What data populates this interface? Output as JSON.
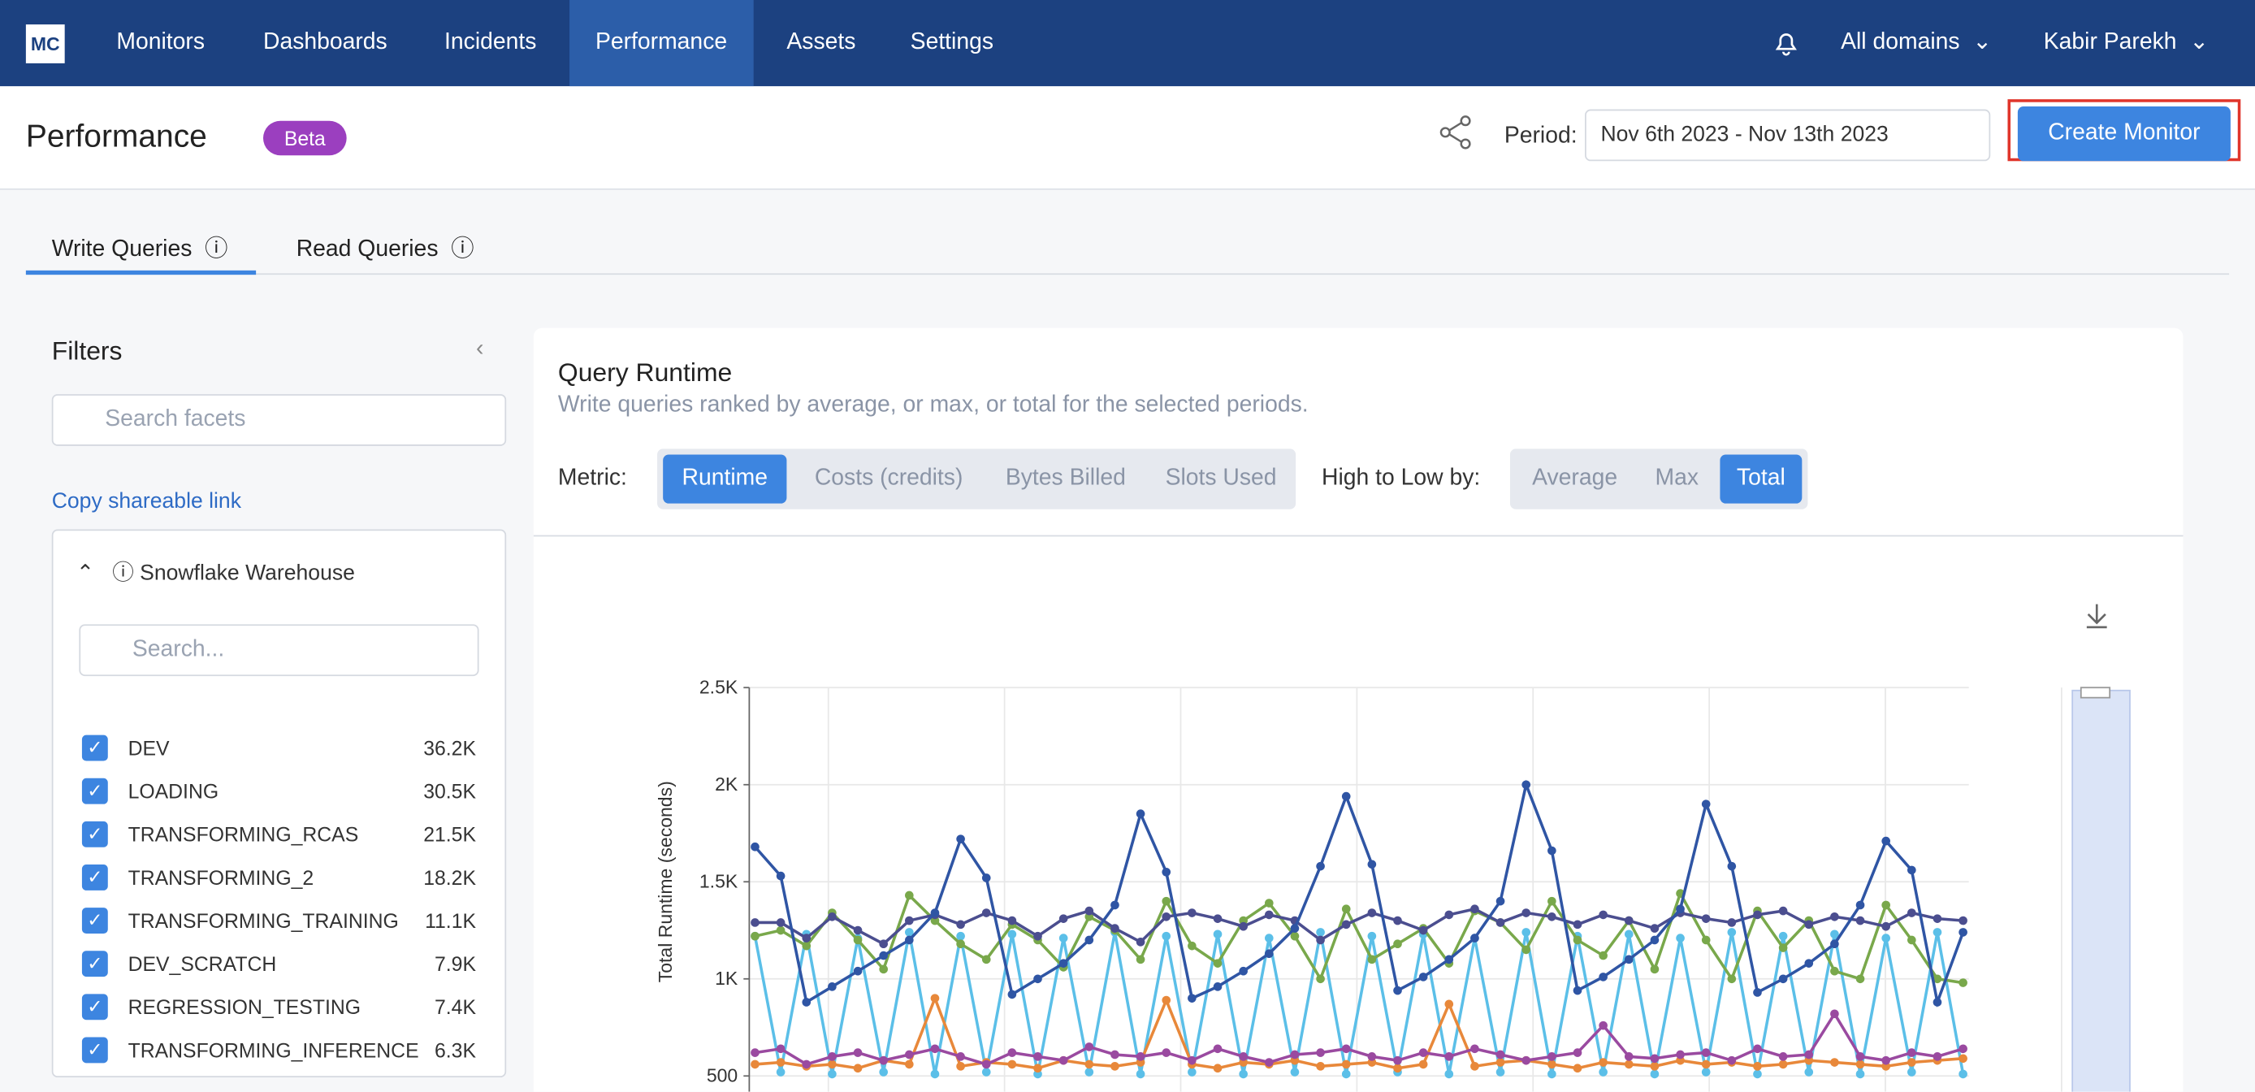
{
  "nav": {
    "logo": "MC",
    "items": [
      "Monitors",
      "Dashboards",
      "Incidents",
      "Performance",
      "Assets",
      "Settings"
    ],
    "domains": "All domains",
    "user": "Kabir Parekh"
  },
  "header": {
    "title": "Performance",
    "badge": "Beta",
    "period_label": "Period:",
    "period": "Nov 6th 2023 - Nov 13th 2023",
    "create_button": "Create Monitor"
  },
  "tabs": [
    "Write Queries",
    "Read Queries"
  ],
  "filters": {
    "title": "Filters",
    "search_placeholder": "Search facets",
    "copy_link": "Copy shareable link",
    "facet": "Snowflake Warehouse",
    "facet_search": "Search...",
    "items": [
      {
        "name": "DEV",
        "count": "36.2K"
      },
      {
        "name": "LOADING",
        "count": "30.5K"
      },
      {
        "name": "TRANSFORMING_RCAS",
        "count": "21.5K"
      },
      {
        "name": "TRANSFORMING_2",
        "count": "18.2K"
      },
      {
        "name": "TRANSFORMING_TRAINING",
        "count": "11.1K"
      },
      {
        "name": "DEV_SCRATCH",
        "count": "7.9K"
      },
      {
        "name": "REGRESSION_TESTING",
        "count": "7.4K"
      },
      {
        "name": "TRANSFORMING_INFERENCE",
        "count": "6.3K"
      }
    ]
  },
  "panel": {
    "title": "Query Runtime",
    "subtitle": "Write queries ranked by average, or max, or total for the selected periods.",
    "metric_label": "Metric:",
    "metrics": [
      "Runtime",
      "Costs (credits)",
      "Bytes Billed",
      "Slots Used"
    ],
    "sort_label": "High to Low by:",
    "sorts": [
      "Average",
      "Max",
      "Total"
    ]
  },
  "chart_data": {
    "type": "line",
    "y_label": "Total Runtime (seconds)",
    "ylim": [
      500,
      2500
    ],
    "yticks": [
      500,
      {
        "value": 1000,
        "label": "1K"
      },
      {
        "value": 1500,
        "label": "1.5K"
      },
      {
        "value": 2000,
        "label": "2K"
      },
      {
        "value": 2500,
        "label": "2.5K"
      }
    ],
    "grid": true,
    "series": [
      {
        "color": "#5bbfe8",
        "values": [
          1220,
          520,
          1230,
          510,
          1210,
          520,
          1240,
          510,
          1220,
          520,
          1230,
          510,
          1210,
          520,
          1240,
          510,
          1220,
          520,
          1230,
          510,
          1210,
          520,
          1240,
          510,
          1220,
          520,
          1230,
          510,
          1210,
          520,
          1240,
          510,
          1220,
          520,
          1230,
          510,
          1210,
          520,
          1240,
          510,
          1220,
          520,
          1230,
          510,
          1210,
          520,
          1240,
          510
        ]
      },
      {
        "color": "#e8883a",
        "values": [
          560,
          570,
          550,
          560,
          540,
          580,
          560,
          900,
          550,
          570,
          560,
          540,
          580,
          560,
          550,
          570,
          890,
          560,
          540,
          570,
          560,
          580,
          550,
          560,
          570,
          540,
          560,
          870,
          550,
          570,
          580,
          560,
          540,
          570,
          560,
          550,
          580,
          560,
          570,
          550,
          560,
          580,
          570,
          560,
          550,
          570,
          580,
          590
        ]
      },
      {
        "color": "#9a4aa0",
        "values": [
          620,
          640,
          560,
          600,
          620,
          580,
          610,
          640,
          600,
          560,
          620,
          600,
          580,
          650,
          610,
          600,
          620,
          580,
          640,
          600,
          570,
          610,
          620,
          640,
          600,
          580,
          620,
          600,
          640,
          610,
          580,
          600,
          620,
          760,
          600,
          590,
          610,
          620,
          580,
          640,
          600,
          610,
          820,
          600,
          580,
          620,
          600,
          640
        ]
      },
      {
        "color": "#79a84b",
        "values": [
          1220,
          1250,
          1170,
          1340,
          1200,
          1050,
          1430,
          1300,
          1180,
          1100,
          1280,
          1200,
          1060,
          1320,
          1250,
          1100,
          1400,
          1170,
          1080,
          1300,
          1390,
          1220,
          1000,
          1360,
          1100,
          1180,
          1260,
          1080,
          1350,
          1290,
          1150,
          1400,
          1200,
          1120,
          1300,
          1050,
          1440,
          1200,
          1000,
          1350,
          1160,
          1300,
          1040,
          1000,
          1380,
          1200,
          1000,
          980
        ]
      },
      {
        "color": "#4b4e8f",
        "values": [
          1290,
          1290,
          1210,
          1320,
          1250,
          1180,
          1300,
          1330,
          1280,
          1340,
          1300,
          1220,
          1310,
          1350,
          1260,
          1190,
          1320,
          1340,
          1310,
          1270,
          1330,
          1300,
          1200,
          1280,
          1340,
          1300,
          1250,
          1330,
          1360,
          1290,
          1340,
          1320,
          1280,
          1330,
          1300,
          1260,
          1340,
          1310,
          1290,
          1330,
          1350,
          1280,
          1320,
          1300,
          1270,
          1340,
          1310,
          1300
        ]
      },
      {
        "color": "#2f55a4",
        "values": [
          1680,
          1530,
          880,
          960,
          1040,
          1120,
          1200,
          1340,
          1720,
          1520,
          920,
          1000,
          1080,
          1200,
          1380,
          1850,
          1550,
          900,
          960,
          1040,
          1130,
          1260,
          1580,
          1940,
          1590,
          940,
          1010,
          1100,
          1210,
          1400,
          2000,
          1660,
          940,
          1010,
          1100,
          1200,
          1360,
          1900,
          1580,
          930,
          1000,
          1080,
          1180,
          1380,
          1710,
          1560,
          880,
          1240
        ]
      }
    ]
  }
}
